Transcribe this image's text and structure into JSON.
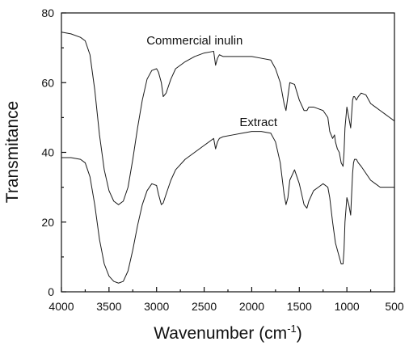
{
  "chart_data": {
    "type": "line",
    "title": "",
    "xlabel": "Wavenumber (cm",
    "xlabel_sup": "-1",
    "xlabel_close": ")",
    "ylabel": "Transmitance",
    "xlim": [
      4000,
      500
    ],
    "ylim": [
      0,
      80
    ],
    "x_reversed": true,
    "xticks": [
      4000,
      3500,
      3000,
      2500,
      2000,
      1500,
      1000,
      500
    ],
    "yticks": [
      0,
      20,
      40,
      60,
      80
    ],
    "grid": false,
    "series": [
      {
        "name": "Commercial inulin",
        "x": [
          4000,
          3900,
          3800,
          3750,
          3700,
          3650,
          3600,
          3550,
          3500,
          3450,
          3400,
          3350,
          3300,
          3250,
          3200,
          3150,
          3100,
          3050,
          3000,
          2980,
          2950,
          2930,
          2900,
          2850,
          2800,
          2700,
          2600,
          2500,
          2400,
          2380,
          2360,
          2340,
          2300,
          2200,
          2100,
          2000,
          1900,
          1800,
          1750,
          1700,
          1660,
          1640,
          1620,
          1600,
          1550,
          1500,
          1450,
          1420,
          1400,
          1350,
          1300,
          1250,
          1200,
          1180,
          1150,
          1130,
          1120,
          1100,
          1080,
          1060,
          1040,
          1030,
          1020,
          1000,
          980,
          960,
          940,
          930,
          920,
          900,
          880,
          850,
          800,
          750,
          700,
          650,
          600,
          550,
          500
        ],
        "y": [
          74.5,
          74,
          73,
          72,
          68,
          58,
          45,
          35,
          29,
          26,
          25,
          26,
          30,
          38,
          47,
          55,
          61,
          63.5,
          64,
          63,
          60,
          56,
          57,
          61,
          64,
          66,
          67.5,
          68.5,
          69,
          65,
          67,
          68,
          67.5,
          67.5,
          67.5,
          67.5,
          67,
          66.5,
          64,
          60,
          54,
          52,
          56,
          60,
          59.5,
          55,
          52,
          52,
          53,
          53,
          52.5,
          52,
          50,
          46,
          44,
          45,
          43,
          41,
          40,
          37,
          36,
          40,
          47,
          53,
          50,
          47,
          55,
          56,
          56,
          55,
          56,
          57,
          56.5,
          54,
          53,
          52,
          51,
          50,
          49
        ]
      },
      {
        "name": "Extract",
        "x": [
          4000,
          3900,
          3800,
          3750,
          3700,
          3650,
          3600,
          3550,
          3500,
          3450,
          3400,
          3350,
          3300,
          3250,
          3200,
          3150,
          3100,
          3050,
          3000,
          2980,
          2950,
          2930,
          2900,
          2850,
          2800,
          2700,
          2600,
          2500,
          2400,
          2380,
          2360,
          2340,
          2300,
          2200,
          2100,
          2000,
          1900,
          1800,
          1750,
          1700,
          1660,
          1640,
          1620,
          1600,
          1550,
          1500,
          1450,
          1420,
          1400,
          1350,
          1300,
          1250,
          1200,
          1180,
          1150,
          1130,
          1120,
          1100,
          1080,
          1060,
          1040,
          1030,
          1020,
          1000,
          980,
          960,
          940,
          930,
          920,
          900,
          880,
          850,
          800,
          750,
          700,
          650,
          600,
          550,
          500
        ],
        "y": [
          38.5,
          38.5,
          38,
          37,
          33,
          25,
          15,
          8,
          4.5,
          3,
          2.5,
          3,
          6,
          12,
          19,
          25,
          29,
          31,
          30.5,
          28,
          25,
          25.5,
          28,
          32,
          35,
          38,
          40,
          42,
          44,
          41,
          43,
          44,
          44.5,
          45,
          45.5,
          46,
          46,
          45.5,
          43,
          37,
          28,
          25,
          27,
          32,
          35,
          31,
          25,
          24,
          26,
          29,
          30,
          31,
          30,
          27,
          20,
          16,
          14,
          12,
          10,
          8,
          8,
          12,
          20,
          27,
          25,
          22,
          34,
          37,
          38,
          38,
          37,
          36,
          34,
          32,
          31,
          30,
          30,
          30,
          30
        ]
      }
    ],
    "annotations": [
      {
        "text": "Commercial inulin",
        "x": 2600,
        "y": 71
      },
      {
        "text": "Extract",
        "x": 1930,
        "y": 47.5
      }
    ]
  }
}
